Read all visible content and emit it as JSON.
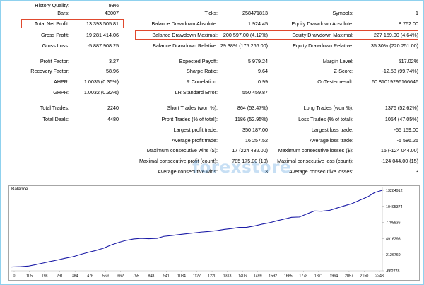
{
  "report": {
    "c1": [
      {
        "label": "History Quality:",
        "value": "93%"
      },
      {
        "label": "Bars:",
        "value": "43007"
      },
      {
        "label": "Total Net Profit:",
        "value": "13 393 505.81"
      },
      {
        "label": "Gross Profit:",
        "value": "19 281 414.06"
      },
      {
        "label": "Gross Loss:",
        "value": "-5 887 908.25"
      },
      {
        "label": "Profit Factor:",
        "value": "3.27"
      },
      {
        "label": "Recovery Factor:",
        "value": "58.96"
      },
      {
        "label": "AHPR:",
        "value": "1.0035 (0.35%)"
      },
      {
        "label": "GHPR:",
        "value": "1.0032 (0.32%)"
      },
      {
        "label": "Total Trades:",
        "value": "2240"
      },
      {
        "label": "Total Deals:",
        "value": "4480"
      }
    ],
    "c2": [
      {
        "label": "Ticks:",
        "value": "258471813"
      },
      {
        "label": "Balance Drawdown Absolute:",
        "value": "1 924.45"
      },
      {
        "label": "Balance Drawdown Maximal:",
        "value": "200 597.00 (4.12%)"
      },
      {
        "label": "Balance Drawdown Relative:",
        "value": "29.38% (175 266.00)"
      },
      {
        "label": "Expected Payoff:",
        "value": "5 979.24"
      },
      {
        "label": "Sharpe Ratio:",
        "value": "9.64"
      },
      {
        "label": "LR Correlation:",
        "value": "0.99"
      },
      {
        "label": "LR Standard Error:",
        "value": "550 459.87"
      },
      {
        "label": "Short Trades (won %):",
        "value": "864 (53.47%)"
      },
      {
        "label": "Profit Trades (% of total):",
        "value": "1186 (52.95%)"
      },
      {
        "label": "Largest profit trade:",
        "value": "350 187.00"
      },
      {
        "label": "Average profit trade:",
        "value": "16 257.52"
      },
      {
        "label": "Maximum consecutive wins ($):",
        "value": "17 (224 482.00)"
      },
      {
        "label": "Maximal consecutive profit (count):",
        "value": "785 175.00 (10)"
      },
      {
        "label": "Average consecutive wins:",
        "value": "3"
      }
    ],
    "c3": [
      {
        "label": "Symbols:",
        "value": "1"
      },
      {
        "label": "Equity Drawdown Absolute:",
        "value": "8 762.00"
      },
      {
        "label": "Equity Drawdown Maximal:",
        "value": "227 159.00 (4.64%)"
      },
      {
        "label": "Equity Drawdown Relative:",
        "value": "35.30% (220 251.00)"
      },
      {
        "label": "Margin Level:",
        "value": "517.02%"
      },
      {
        "label": "Z-Score:",
        "value": "-12.58 (99.74%)"
      },
      {
        "label": "OnTester result:",
        "value": "60.81019296166646"
      },
      {
        "label": "Long Trades (won %):",
        "value": "1376 (52.62%)"
      },
      {
        "label": "Loss Trades (% of total):",
        "value": "1054 (47.05%)"
      },
      {
        "label": "Largest loss trade:",
        "value": "-55 159.00"
      },
      {
        "label": "Average loss trade:",
        "value": "-5 586.25"
      },
      {
        "label": "Maximum consecutive losses ($):",
        "value": "15 (-124 044.00)"
      },
      {
        "label": "Maximal consecutive loss (count):",
        "value": "-124 044.00 (15)"
      },
      {
        "label": "Average consecutive losses:",
        "value": "3"
      }
    ]
  },
  "colors": {
    "highlight": "#e0492e",
    "frame": "#8fd1ee",
    "line": "#1a1aa6"
  },
  "watermark": "forexstore",
  "chart_data": {
    "type": "line",
    "title": "Balance",
    "x_ticks": [
      "0",
      "105",
      "198",
      "291",
      "384",
      "476",
      "569",
      "662",
      "755",
      "848",
      "941",
      "1034",
      "1127",
      "1220",
      "1313",
      "1406",
      "1499",
      "1592",
      "1685",
      "1778",
      "1871",
      "1964",
      "2057",
      "2150",
      "2243"
    ],
    "y_ticks": [
      "13284912",
      "10495374",
      "7705836",
      "4916298",
      "2126760",
      "-662778"
    ],
    "ylim": [
      -662778,
      13284912
    ],
    "xlim": [
      0,
      2290
    ],
    "series": [
      {
        "x": [
          0,
          60,
          105,
          150,
          198,
          240,
          291,
          330,
          384,
          430,
          476,
          520,
          569,
          615,
          662,
          700,
          755,
          800,
          848,
          900,
          941,
          990,
          1034,
          1080,
          1127,
          1175,
          1220,
          1270,
          1313,
          1360,
          1406,
          1450,
          1499,
          1545,
          1592,
          1640,
          1685,
          1730,
          1778,
          1825,
          1871,
          1915,
          1964,
          2010,
          2057,
          2100,
          2150,
          2200,
          2243,
          2290
        ],
        "y": [
          0,
          60000,
          150000,
          400000,
          700000,
          950000,
          1250000,
          1500000,
          1800000,
          2200000,
          2550000,
          2850000,
          3250000,
          3800000,
          4250000,
          4550000,
          4850000,
          4950000,
          4900000,
          4950000,
          5300000,
          5450000,
          5600000,
          5750000,
          5900000,
          6050000,
          6150000,
          6300000,
          6500000,
          6650000,
          6850000,
          6850000,
          7100000,
          7400000,
          7650000,
          8000000,
          8300000,
          8600000,
          8650000,
          9200000,
          9700000,
          9650000,
          9800000,
          10200000,
          10600000,
          10950000,
          11550000,
          12150000,
          12900000,
          13284912
        ]
      }
    ]
  }
}
